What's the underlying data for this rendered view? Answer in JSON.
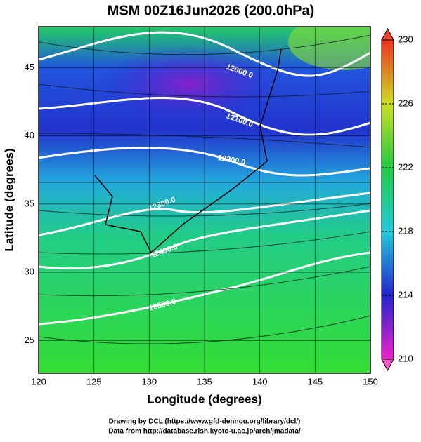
{
  "title": "MSM 00Z16Jun2026 (200.0hPa)",
  "x_axis": {
    "label": "Longitude (degrees)",
    "lim": [
      120,
      150
    ],
    "ticks": [
      120,
      125,
      130,
      135,
      140,
      145,
      150
    ]
  },
  "y_axis": {
    "label": "Latitude  (degrees)",
    "lim": [
      22.6,
      48.0
    ],
    "ticks": [
      25,
      30,
      35,
      40,
      45
    ]
  },
  "colorbar": {
    "lim": [
      210,
      230
    ],
    "ticks": [
      210,
      214,
      218,
      222,
      226,
      230
    ]
  },
  "contours": [
    "12000.0",
    "12100.0",
    "12200.0",
    "12300.0",
    "12400.0",
    "12500.0"
  ],
  "credits": [
    "Drawing by DCL (https://www.gfd-dennou.org/library/dcl/)",
    "Data from http://database.rish.kyoto-u.ac.jp/arch/jmadata/"
  ]
}
